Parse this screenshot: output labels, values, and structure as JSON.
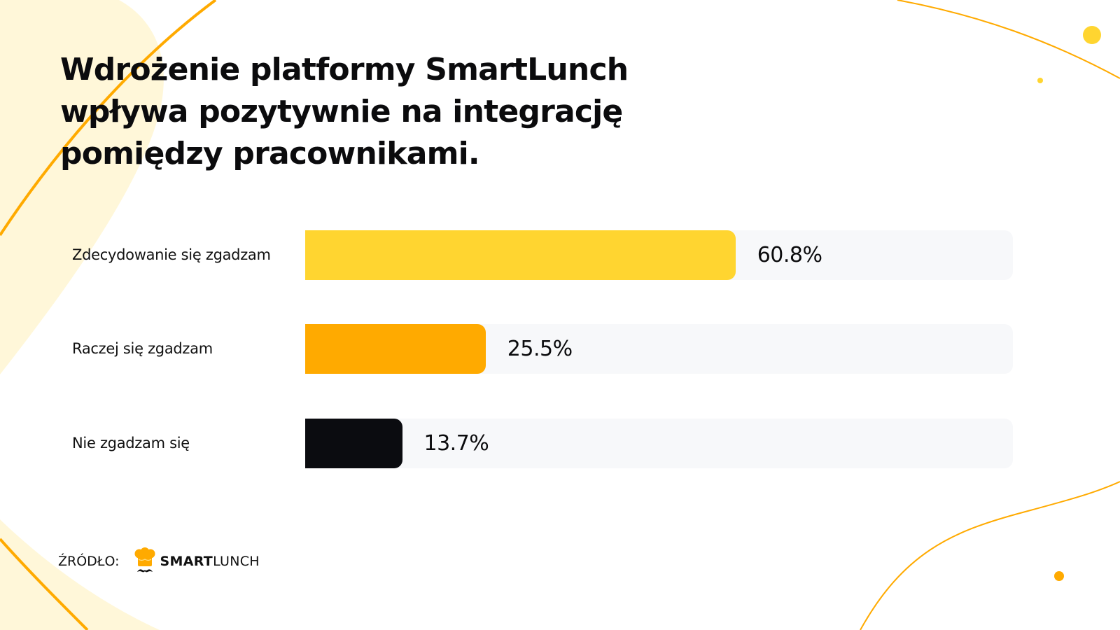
{
  "title": {
    "lines": [
      "Wdrożenie platformy SmartLunch",
      "wpływa pozytywnie na integrację",
      "pomiędzy pracownikami."
    ]
  },
  "colors": {
    "bar_1": "#ffd530",
    "bar_2": "#ffaa00",
    "bar_3": "#0b0c10",
    "track": "#f7f8fa",
    "accent_line": "#ffaa00",
    "pale_shape": "#fff7d9"
  },
  "chart_data": {
    "type": "bar",
    "orientation": "horizontal",
    "title": "Wdrożenie platformy SmartLunch wpływa pozytywnie na integrację pomiędzy pracownikami.",
    "categories": [
      "Zdecydowanie się zgadzam",
      "Raczej się zgadzam",
      "Nie zgadzam się"
    ],
    "values": [
      60.8,
      25.5,
      13.7
    ],
    "value_labels": [
      "60.8%",
      "25.5%",
      "13.7%"
    ],
    "unit": "%",
    "xlim": [
      0,
      100
    ],
    "grid": false,
    "legend": "none"
  },
  "source": {
    "label": "ŹRÓDŁO:",
    "brand_bold": "SMART",
    "brand_regular": "LUNCH",
    "logo_icon": "chef-hat-mustache-icon"
  }
}
